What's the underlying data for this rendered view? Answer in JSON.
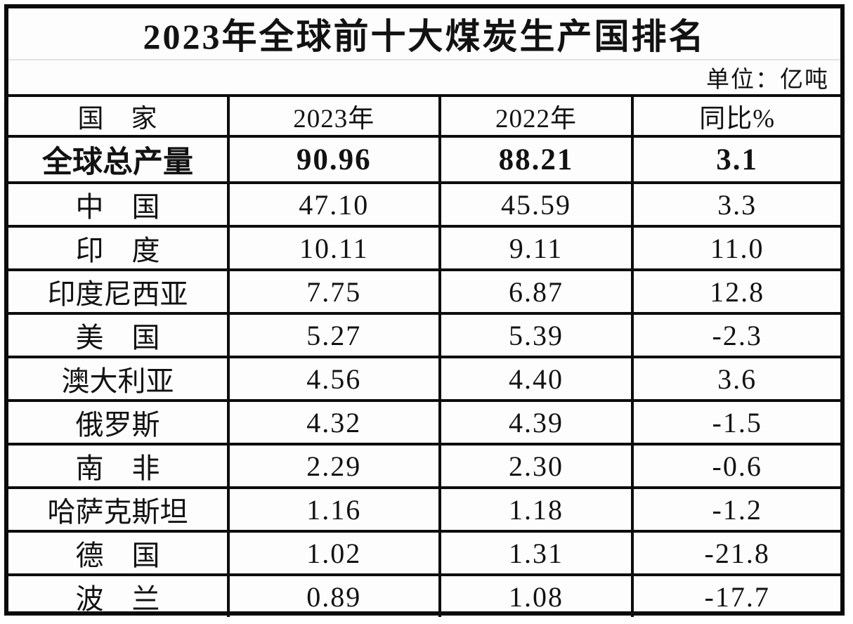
{
  "table": {
    "title": "2023年全球前十大煤炭生产国排名",
    "unit_label": "单位：亿吨",
    "columns": [
      "国　家",
      "2023年",
      "2022年",
      "同比%"
    ],
    "rows": [
      {
        "country": "全球总产量",
        "y2023": "90.96",
        "y2022": "88.21",
        "yoy": "3.1",
        "bold": true
      },
      {
        "country": "中　国",
        "y2023": "47.10",
        "y2022": "45.59",
        "yoy": "3.3",
        "bold": false
      },
      {
        "country": "印　度",
        "y2023": "10.11",
        "y2022": "9.11",
        "yoy": "11.0",
        "bold": false
      },
      {
        "country": "印度尼西亚",
        "y2023": "7.75",
        "y2022": "6.87",
        "yoy": "12.8",
        "bold": false
      },
      {
        "country": "美　国",
        "y2023": "5.27",
        "y2022": "5.39",
        "yoy": "-2.3",
        "bold": false
      },
      {
        "country": "澳大利亚",
        "y2023": "4.56",
        "y2022": "4.40",
        "yoy": "3.6",
        "bold": false
      },
      {
        "country": "俄罗斯",
        "y2023": "4.32",
        "y2022": "4.39",
        "yoy": "-1.5",
        "bold": false
      },
      {
        "country": "南　非",
        "y2023": "2.29",
        "y2022": "2.30",
        "yoy": "-0.6",
        "bold": false
      },
      {
        "country": "哈萨克斯坦",
        "y2023": "1.16",
        "y2022": "1.18",
        "yoy": "-1.2",
        "bold": false
      },
      {
        "country": "德　国",
        "y2023": "1.02",
        "y2022": "1.31",
        "yoy": "-21.8",
        "bold": false
      },
      {
        "country": "波　兰",
        "y2023": "0.89",
        "y2022": "1.08",
        "yoy": "-17.7",
        "bold": false
      }
    ]
  },
  "colors": {
    "border": "#0d0d0d",
    "text": "#121212",
    "background": "#fdfdfd",
    "title_divider": "#e2e2e2"
  },
  "chart_data": {
    "type": "table",
    "title": "2023年全球前十大煤炭生产国排名",
    "unit": "亿吨",
    "columns": [
      "国家",
      "2023年",
      "2022年",
      "同比%"
    ],
    "categories": [
      "全球总产量",
      "中国",
      "印度",
      "印度尼西亚",
      "美国",
      "澳大利亚",
      "俄罗斯",
      "南非",
      "哈萨克斯坦",
      "德国",
      "波兰"
    ],
    "series": [
      {
        "name": "2023年",
        "values": [
          90.96,
          47.1,
          10.11,
          7.75,
          5.27,
          4.56,
          4.32,
          2.29,
          1.16,
          1.02,
          0.89
        ]
      },
      {
        "name": "2022年",
        "values": [
          88.21,
          45.59,
          9.11,
          6.87,
          5.39,
          4.4,
          4.39,
          2.3,
          1.18,
          1.31,
          1.08
        ]
      },
      {
        "name": "同比%",
        "values": [
          3.1,
          3.3,
          11.0,
          12.8,
          -2.3,
          3.6,
          -1.5,
          -0.6,
          -1.2,
          -21.8,
          -17.7
        ]
      }
    ]
  }
}
